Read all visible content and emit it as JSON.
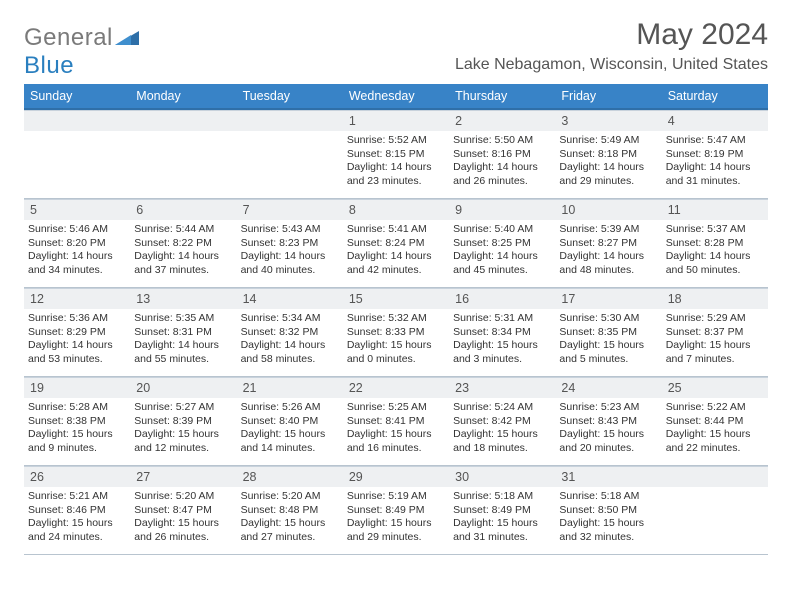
{
  "logo": {
    "text1": "General",
    "text2": "Blue"
  },
  "title": {
    "month_year": "May 2024"
  },
  "location": "Lake Nebagamon, Wisconsin, United States",
  "dayHeaders": [
    "Sunday",
    "Monday",
    "Tuesday",
    "Wednesday",
    "Thursday",
    "Friday",
    "Saturday"
  ],
  "colors": {
    "header_bg": "#3883c7",
    "header_border": "#2f6fa8",
    "daynum_bg": "#eef0f2",
    "cell_border": "#b8c4cf",
    "title_color": "#555555",
    "body_text": "#333333",
    "logo_gray": "#7a7a7a",
    "logo_blue": "#2a7fbf"
  },
  "weeks": [
    [
      {
        "empty": true
      },
      {
        "empty": true
      },
      {
        "empty": true
      },
      {
        "num": "1",
        "sunrise": "5:52 AM",
        "sunset": "8:15 PM",
        "dl_h": "14",
        "dl_m": "23"
      },
      {
        "num": "2",
        "sunrise": "5:50 AM",
        "sunset": "8:16 PM",
        "dl_h": "14",
        "dl_m": "26"
      },
      {
        "num": "3",
        "sunrise": "5:49 AM",
        "sunset": "8:18 PM",
        "dl_h": "14",
        "dl_m": "29"
      },
      {
        "num": "4",
        "sunrise": "5:47 AM",
        "sunset": "8:19 PM",
        "dl_h": "14",
        "dl_m": "31"
      }
    ],
    [
      {
        "num": "5",
        "sunrise": "5:46 AM",
        "sunset": "8:20 PM",
        "dl_h": "14",
        "dl_m": "34"
      },
      {
        "num": "6",
        "sunrise": "5:44 AM",
        "sunset": "8:22 PM",
        "dl_h": "14",
        "dl_m": "37"
      },
      {
        "num": "7",
        "sunrise": "5:43 AM",
        "sunset": "8:23 PM",
        "dl_h": "14",
        "dl_m": "40"
      },
      {
        "num": "8",
        "sunrise": "5:41 AM",
        "sunset": "8:24 PM",
        "dl_h": "14",
        "dl_m": "42"
      },
      {
        "num": "9",
        "sunrise": "5:40 AM",
        "sunset": "8:25 PM",
        "dl_h": "14",
        "dl_m": "45"
      },
      {
        "num": "10",
        "sunrise": "5:39 AM",
        "sunset": "8:27 PM",
        "dl_h": "14",
        "dl_m": "48"
      },
      {
        "num": "11",
        "sunrise": "5:37 AM",
        "sunset": "8:28 PM",
        "dl_h": "14",
        "dl_m": "50"
      }
    ],
    [
      {
        "num": "12",
        "sunrise": "5:36 AM",
        "sunset": "8:29 PM",
        "dl_h": "14",
        "dl_m": "53"
      },
      {
        "num": "13",
        "sunrise": "5:35 AM",
        "sunset": "8:31 PM",
        "dl_h": "14",
        "dl_m": "55"
      },
      {
        "num": "14",
        "sunrise": "5:34 AM",
        "sunset": "8:32 PM",
        "dl_h": "14",
        "dl_m": "58"
      },
      {
        "num": "15",
        "sunrise": "5:32 AM",
        "sunset": "8:33 PM",
        "dl_h": "15",
        "dl_m": "0"
      },
      {
        "num": "16",
        "sunrise": "5:31 AM",
        "sunset": "8:34 PM",
        "dl_h": "15",
        "dl_m": "3"
      },
      {
        "num": "17",
        "sunrise": "5:30 AM",
        "sunset": "8:35 PM",
        "dl_h": "15",
        "dl_m": "5"
      },
      {
        "num": "18",
        "sunrise": "5:29 AM",
        "sunset": "8:37 PM",
        "dl_h": "15",
        "dl_m": "7"
      }
    ],
    [
      {
        "num": "19",
        "sunrise": "5:28 AM",
        "sunset": "8:38 PM",
        "dl_h": "15",
        "dl_m": "9"
      },
      {
        "num": "20",
        "sunrise": "5:27 AM",
        "sunset": "8:39 PM",
        "dl_h": "15",
        "dl_m": "12"
      },
      {
        "num": "21",
        "sunrise": "5:26 AM",
        "sunset": "8:40 PM",
        "dl_h": "15",
        "dl_m": "14"
      },
      {
        "num": "22",
        "sunrise": "5:25 AM",
        "sunset": "8:41 PM",
        "dl_h": "15",
        "dl_m": "16"
      },
      {
        "num": "23",
        "sunrise": "5:24 AM",
        "sunset": "8:42 PM",
        "dl_h": "15",
        "dl_m": "18"
      },
      {
        "num": "24",
        "sunrise": "5:23 AM",
        "sunset": "8:43 PM",
        "dl_h": "15",
        "dl_m": "20"
      },
      {
        "num": "25",
        "sunrise": "5:22 AM",
        "sunset": "8:44 PM",
        "dl_h": "15",
        "dl_m": "22"
      }
    ],
    [
      {
        "num": "26",
        "sunrise": "5:21 AM",
        "sunset": "8:46 PM",
        "dl_h": "15",
        "dl_m": "24"
      },
      {
        "num": "27",
        "sunrise": "5:20 AM",
        "sunset": "8:47 PM",
        "dl_h": "15",
        "dl_m": "26"
      },
      {
        "num": "28",
        "sunrise": "5:20 AM",
        "sunset": "8:48 PM",
        "dl_h": "15",
        "dl_m": "27"
      },
      {
        "num": "29",
        "sunrise": "5:19 AM",
        "sunset": "8:49 PM",
        "dl_h": "15",
        "dl_m": "29"
      },
      {
        "num": "30",
        "sunrise": "5:18 AM",
        "sunset": "8:49 PM",
        "dl_h": "15",
        "dl_m": "31"
      },
      {
        "num": "31",
        "sunrise": "5:18 AM",
        "sunset": "8:50 PM",
        "dl_h": "15",
        "dl_m": "32"
      },
      {
        "empty": true
      }
    ]
  ],
  "labels": {
    "sunrise": "Sunrise: ",
    "sunset": "Sunset: ",
    "daylight_pre": "Daylight: ",
    "daylight_mid": " hours and ",
    "daylight_post": " minutes."
  }
}
